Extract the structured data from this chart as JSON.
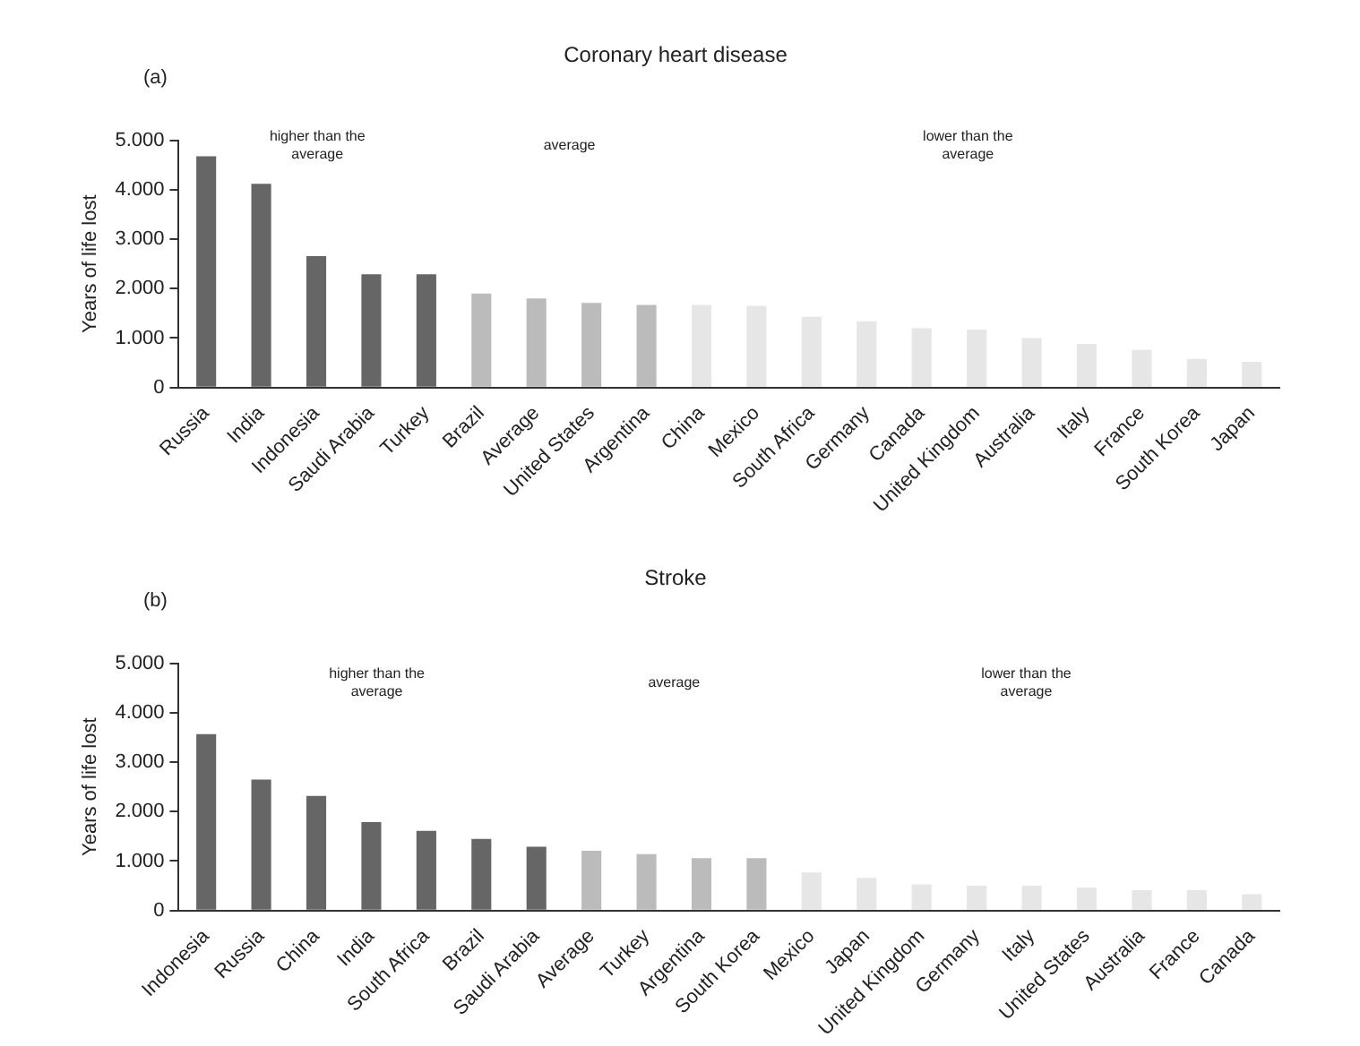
{
  "chart_data": [
    {
      "type": "bar",
      "title": "Coronary heart disease",
      "ylabel": "Years of life lost",
      "annotations": [
        "(a)",
        "higher than the average",
        "average",
        "lower than the average"
      ],
      "categories": [
        "Russia",
        "India",
        "Indonesia",
        "Saudi Arabia",
        "Turkey",
        "Brazil",
        "Average",
        "United States",
        "Argentina",
        "China",
        "Mexico",
        "South Africa",
        "Germany",
        "Canada",
        "United Kingdom",
        "Australia",
        "Italy",
        "France",
        "South Korea",
        "Japan"
      ],
      "values": [
        4680,
        4120,
        2660,
        2290,
        2290,
        1900,
        1800,
        1710,
        1670,
        1670,
        1650,
        1430,
        1340,
        1200,
        1170,
        1000,
        880,
        760,
        580,
        520
      ],
      "colors": [
        "#666666",
        "#666666",
        "#666666",
        "#666666",
        "#666666",
        "#bbbbbb",
        "#bbbbbb",
        "#bbbbbb",
        "#bbbbbb",
        "#e6e6e6",
        "#e6e6e6",
        "#e6e6e6",
        "#e6e6e6",
        "#e6e6e6",
        "#e6e6e6",
        "#e6e6e6",
        "#e6e6e6",
        "#e6e6e6",
        "#e6e6e6",
        "#e6e6e6"
      ],
      "ylim": [
        0,
        5000
      ],
      "yticks": [
        0,
        {
          "value": 1000,
          "label": "1.000"
        },
        {
          "value": 2000,
          "label": "2.000"
        },
        {
          "value": 3000,
          "label": "3.000"
        },
        {
          "value": 4000,
          "label": "4.000"
        },
        {
          "value": 5000,
          "label": "5.000"
        }
      ],
      "grid": false,
      "legend": false
    },
    {
      "type": "bar",
      "title": "Stroke",
      "ylabel": "Years of life lost",
      "annotations": [
        "(b)",
        "higher than the average",
        "average",
        "lower than the average"
      ],
      "categories": [
        "Indonesia",
        "Russia",
        "China",
        "India",
        "South Africa",
        "Brazil",
        "Saudi Arabia",
        "Average",
        "Turkey",
        "Argentina",
        "South Korea",
        "Mexico",
        "Japan",
        "United Kingdom",
        "Germany",
        "Italy",
        "United States",
        "Australia",
        "France",
        "Canada"
      ],
      "values": [
        3570,
        2650,
        2320,
        1790,
        1610,
        1450,
        1290,
        1210,
        1140,
        1060,
        1060,
        770,
        660,
        530,
        500,
        500,
        460,
        410,
        410,
        330
      ],
      "colors": [
        "#666666",
        "#666666",
        "#666666",
        "#666666",
        "#666666",
        "#666666",
        "#666666",
        "#bbbbbb",
        "#bbbbbb",
        "#bbbbbb",
        "#bbbbbb",
        "#e6e6e6",
        "#e6e6e6",
        "#e6e6e6",
        "#e6e6e6",
        "#e6e6e6",
        "#e6e6e6",
        "#e6e6e6",
        "#e6e6e6",
        "#e6e6e6"
      ],
      "ylim": [
        0,
        5000
      ],
      "yticks": [
        0,
        {
          "value": 1000,
          "label": "1.000"
        },
        {
          "value": 2000,
          "label": "2.000"
        },
        {
          "value": 3000,
          "label": "3.000"
        },
        {
          "value": 4000,
          "label": "4.000"
        },
        {
          "value": 5000,
          "label": "5.000"
        }
      ],
      "grid": false,
      "legend": false
    }
  ]
}
